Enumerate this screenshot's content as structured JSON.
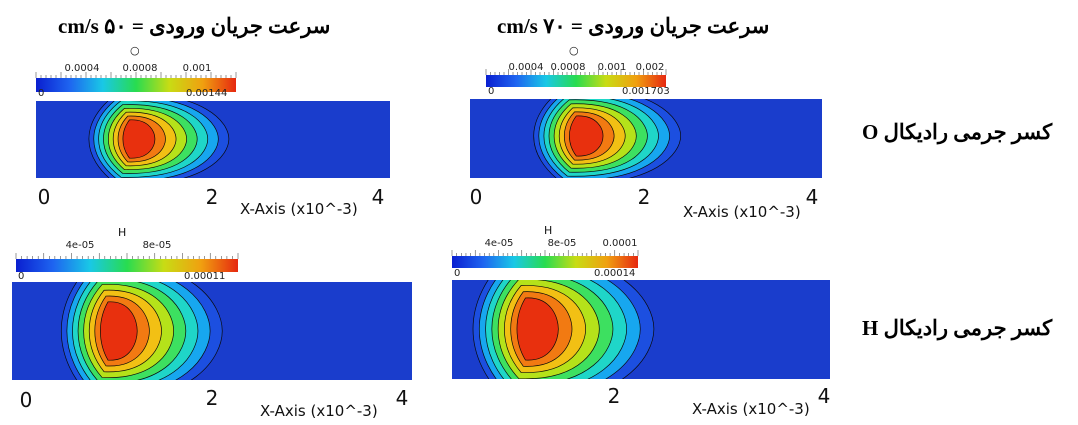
{
  "columns": [
    {
      "title": "سرعت جریان ورودی = ۵۰ cm/s"
    },
    {
      "title": "سرعت جریان ورودی = ۷۰ cm/s"
    }
  ],
  "rows": [
    {
      "label": "کسر جرمی رادیکال O"
    },
    {
      "label": "کسر جرمی رادیکال H"
    }
  ],
  "panels": [
    {
      "id": "p-o-50",
      "variable": "O",
      "colorbar_min": "0",
      "colorbar_max": "0.00144",
      "ticks": [
        "0.0004",
        "0.0008",
        "0.001"
      ],
      "axis_start": "0",
      "axis_mid": "2",
      "axis_end": "4",
      "axis_title": "X-Axis (x10^-3)"
    },
    {
      "id": "p-o-70",
      "variable": "O",
      "colorbar_min": "0",
      "colorbar_max": "0.001703",
      "ticks": [
        "0.0004",
        "0.0008",
        "0.001",
        "0.002"
      ],
      "axis_start": "0",
      "axis_mid": "2",
      "axis_end": "4",
      "axis_title": "X-Axis (x10^-3)"
    },
    {
      "id": "p-h-50",
      "variable": "H",
      "colorbar_min": "0",
      "colorbar_max": "0.00011",
      "ticks": [
        "4e-05",
        "8e-05"
      ],
      "axis_start": "0",
      "axis_mid": "2",
      "axis_end": "4",
      "axis_title": "X-Axis (x10^-3)"
    },
    {
      "id": "p-h-70",
      "variable": "H",
      "colorbar_min": "0",
      "colorbar_max": "0.00014",
      "ticks": [
        "4e-05",
        "8e-05",
        "0.0001"
      ],
      "axis_start": "",
      "axis_mid": "2",
      "axis_end": "4",
      "axis_title": "X-Axis (x10^-3)"
    }
  ],
  "colors": {
    "background_field": "#1a3dcc",
    "colormap": [
      "#0a1fd0",
      "#1e64f0",
      "#19c8e6",
      "#28dc50",
      "#c8dc14",
      "#f0a010",
      "#e62810"
    ]
  }
}
